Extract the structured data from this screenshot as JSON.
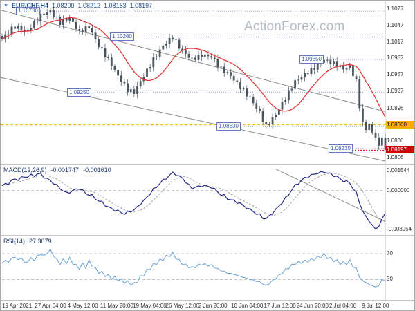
{
  "watermark": "ActionForex.com",
  "header": {
    "symbol": "EUR/CHF,H4",
    "open": "1.08200",
    "high": "1.08212",
    "low": "1.08183",
    "close": "1.08197"
  },
  "panes": {
    "macd": {
      "label": "MACD(12,26,9)",
      "value1": "-0.001747",
      "value2": "-0.001610"
    },
    "rsi": {
      "label": "RSI(14)",
      "value": "27.3079"
    }
  },
  "price_axis": {
    "ticks": [
      {
        "label": "1.1077",
        "price": 1.1077
      },
      {
        "label": "1.1047",
        "price": 1.1047
      },
      {
        "label": "1.1017",
        "price": 1.1017
      },
      {
        "label": "1.0987",
        "price": 1.0987
      },
      {
        "label": "1.0957",
        "price": 1.0957
      },
      {
        "label": "1.0927",
        "price": 1.0927
      },
      {
        "label": "1.0896",
        "price": 1.0896
      },
      {
        "label": "1.0836",
        "price": 1.0836
      },
      {
        "label": "1.0806",
        "price": 1.0806
      }
    ]
  },
  "axis_markers": {
    "orange": {
      "label": "1.08660",
      "price": 1.0866
    },
    "red": {
      "label": "1.08197",
      "price": 1.08197
    }
  },
  "macd_axis": [
    {
      "label": "0.001544",
      "value": 0.001544
    },
    {
      "label": "0.000000",
      "value": 0
    },
    {
      "label": "-0.003054",
      "value": -0.003054
    }
  ],
  "rsi_axis": [
    {
      "label": "70",
      "value": 70
    },
    {
      "label": "30",
      "value": 30
    }
  ],
  "time_axis": [
    "19 Apr 2021",
    "27 Apr 04:00",
    "4 May 12:00",
    "11 May 20:00",
    "19 May 04:00",
    "26 May 12:00",
    "2 Jun 20:00",
    "10 Jun 04:00",
    "17 Jun 12:00",
    "24 Jun 20:00",
    "2 Jul 04:00",
    "9 Jul 12:00"
  ],
  "levels": [
    {
      "label": "1.10730",
      "price": 1.1073,
      "x": 22
    },
    {
      "label": "1.10260",
      "price": 1.1026,
      "x": 158
    },
    {
      "label": "1.09250",
      "price": 1.0925,
      "x": 96
    },
    {
      "label": "1.09850",
      "price": 1.0985,
      "x": 432
    },
    {
      "label": "1.08630",
      "price": 1.0863,
      "x": 312
    },
    {
      "label": "1.08230",
      "price": 1.0823,
      "x": 474
    }
  ],
  "colors": {
    "candle": "#4a555f",
    "ma": "#e03535",
    "macd": "#20288c",
    "signal": "#a0a0a0",
    "rsi": "#64a0d8",
    "level": "#3b5cb8",
    "channel": "#8c8c8c",
    "orange_box": "#ffae00",
    "red_box": "#d40000",
    "watermark": "#b3bac4"
  },
  "chart_data": [
    {
      "type": "candlestick",
      "name": "EUR/CHF H4",
      "ylim": [
        1.0806,
        1.1077
      ],
      "current_price": 1.08197,
      "closes": [
        1.1022,
        1.1029,
        1.1034,
        1.1041,
        1.1045,
        1.1043,
        1.104,
        1.1036,
        1.1038,
        1.1045,
        1.1052,
        1.1058,
        1.1065,
        1.1068,
        1.107,
        1.1073,
        1.1066,
        1.1059,
        1.1052,
        1.1055,
        1.1058,
        1.106,
        1.1052,
        1.1043,
        1.1035,
        1.1038,
        1.1042,
        1.1045,
        1.1033,
        1.1021,
        1.101,
        1.1002,
        1.0993,
        1.0985,
        1.0975,
        1.0965,
        1.0955,
        1.0947,
        1.0938,
        1.093,
        1.0927,
        1.0925,
        1.0935,
        1.0945,
        1.0955,
        1.0965,
        1.0975,
        1.0985,
        1.0993,
        1.1002,
        1.101,
        1.1015,
        1.1021,
        1.1026,
        1.1017,
        1.1008,
        1.1,
        1.0995,
        1.099,
        1.0985,
        1.0988,
        1.099,
        1.0993,
        1.0992,
        1.0991,
        1.099,
        1.0983,
        1.0975,
        1.0968,
        1.0964,
        1.096,
        1.0955,
        1.0948,
        1.0941,
        1.0935,
        1.0928,
        1.0921,
        1.0915,
        1.0906,
        1.0897,
        1.0888,
        1.0875,
        1.0863,
        1.087,
        1.0877,
        1.0885,
        1.0895,
        1.0905,
        1.0915,
        1.0925,
        1.0935,
        1.0945,
        1.0949,
        1.0953,
        1.0958,
        1.0962,
        1.0966,
        1.097,
        1.0975,
        1.098,
        1.0985,
        1.0982,
        1.098,
        1.0978,
        1.0975,
        1.0971,
        1.0968,
        1.097,
        1.0972,
        1.0958,
        1.0945,
        1.09,
        1.0868,
        1.0858,
        1.0868,
        1.0852,
        1.0843,
        1.0828,
        1.0842,
        1.082
      ],
      "channel_lines": [
        {
          "left_price": 1.1075,
          "right_price": 1.089
        },
        {
          "left_price": 1.0952,
          "right_price": 1.08
        }
      ],
      "levels": [
        1.1073,
        1.1026,
        1.0925,
        1.0985,
        1.0863,
        1.0823
      ]
    },
    {
      "type": "line",
      "name": "MACD(12,26,9)",
      "ylim": [
        -0.003054,
        0.001544
      ],
      "current": -0.001747,
      "signal_current": -0.00161,
      "values": [
        0.0004,
        0.0005,
        0.0006,
        0.0008,
        0.0009,
        0.0009,
        0.001,
        0.0011,
        0.0011,
        0.0012,
        0.0012,
        0.0013,
        0.0013,
        0.0011,
        0.0009,
        0.0008,
        0.0006,
        0.0004,
        0.0002,
        0.0,
        -0.0002,
        -0.0001,
        0.0,
        0.0001,
        0.0002,
        0.0,
        -0.0002,
        -0.0003,
        -0.0004,
        -0.0006,
        -0.0008,
        -0.0009,
        -0.0011,
        -0.0013,
        -0.0014,
        -0.0015,
        -0.0016,
        -0.0017,
        -0.0018,
        -0.0017,
        -0.0016,
        -0.0015,
        -0.0013,
        -0.001,
        -0.0008,
        -0.0005,
        -0.0002,
        0.0001,
        0.0003,
        0.0006,
        0.0008,
        0.001,
        0.0012,
        0.0014,
        0.0013,
        0.0011,
        0.001,
        0.0007,
        0.0004,
        0.0002,
        0.0003,
        0.0003,
        0.0004,
        0.0004,
        0.0003,
        0.0003,
        0.0001,
        -0.0001,
        -0.0003,
        -0.0004,
        -0.0006,
        -0.0007,
        -0.0008,
        -0.0009,
        -0.001,
        -0.0012,
        -0.0013,
        -0.0015,
        -0.0016,
        -0.0018,
        -0.0019,
        -0.0021,
        -0.0022,
        -0.002,
        -0.0017,
        -0.0015,
        -0.0012,
        -0.0009,
        -0.0006,
        -0.0003,
        0.0001,
        0.0004,
        0.0006,
        0.0008,
        0.001,
        0.0011,
        0.0012,
        0.0013,
        0.0014,
        0.0014,
        0.0015,
        0.0014,
        0.0013,
        0.0012,
        0.0011,
        0.0009,
        0.0008,
        0.0007,
        0.0006,
        0.0002,
        -0.0002,
        -0.0009,
        -0.0016,
        -0.002,
        -0.0024,
        -0.0027,
        -0.003,
        -0.0028,
        -0.0022,
        -0.001747
      ],
      "trendline": {
        "from_index": 85,
        "from_value": 0.0017,
        "to_index": 120,
        "to_value": -0.0024
      }
    },
    {
      "type": "line",
      "name": "RSI(14)",
      "ylim": [
        0,
        100
      ],
      "reference_lines": [
        70,
        30
      ],
      "current": 27.3079,
      "values": [
        55,
        60,
        57,
        63,
        65,
        60,
        64,
        56,
        58,
        63,
        60,
        66,
        70,
        66,
        72,
        75,
        68,
        60,
        55,
        60,
        57,
        62,
        56,
        51,
        48,
        53,
        50,
        58,
        52,
        46,
        42,
        40,
        37,
        35,
        33,
        32,
        30,
        28,
        27,
        25,
        24,
        22,
        28,
        33,
        38,
        43,
        48,
        52,
        56,
        59,
        62,
        65,
        68,
        70,
        64,
        59,
        55,
        52,
        50,
        48,
        50,
        52,
        54,
        53,
        52,
        52,
        49,
        46,
        44,
        42,
        40,
        39,
        38,
        36,
        35,
        33,
        32,
        30,
        29,
        27,
        26,
        23,
        20,
        24,
        28,
        32,
        36,
        40,
        45,
        48,
        52,
        55,
        56,
        57,
        58,
        59,
        60,
        62,
        64,
        66,
        68,
        65,
        62,
        60,
        58,
        56,
        55,
        56,
        58,
        52,
        45,
        36,
        28,
        25,
        22,
        20,
        18,
        20,
        30,
        27.3
      ]
    }
  ]
}
